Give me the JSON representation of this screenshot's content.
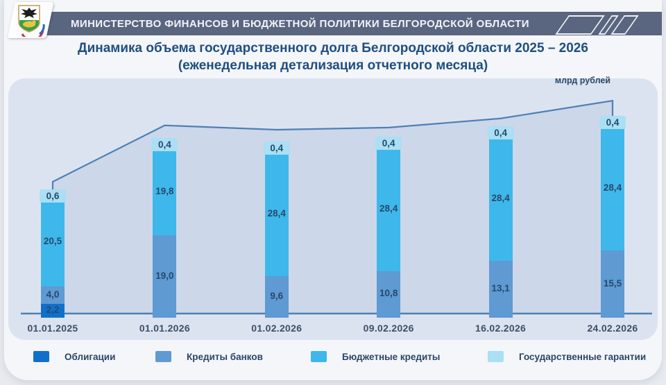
{
  "header": {
    "ministry": "МИНИСТЕРСТВО ФИНАНСОВ И БЮДЖЕТНОЙ ПОЛИТИКИ БЕЛГОРОДСКОЙ ОБЛАСТИ",
    "logo": "coat-of-arms-belgorod-region"
  },
  "title": {
    "line1": "Динамика объема государственного долга Белгородской области 2025 – 2026",
    "line2": "(еженедельная детализация отчетного месяца)"
  },
  "chart_data": {
    "type": "stacked-bar-with-area-trend",
    "title": "Динамика объема государственного долга Белгородской области 2025 – 2026",
    "unit_label": "млрд рублей",
    "categories": [
      "01.01.2025",
      "01.01.2026",
      "01.02.2026",
      "09.02.2026",
      "16.02.2026",
      "24.02.2026"
    ],
    "series": [
      {
        "name": "Облигации",
        "color": "#1070c9",
        "values": [
          2.2,
          0,
          0,
          0,
          0,
          0
        ]
      },
      {
        "name": "Кредиты банков",
        "color": "#5f9ad2",
        "values": [
          4.0,
          19.0,
          9.6,
          10.8,
          13.1,
          15.5
        ]
      },
      {
        "name": "Бюджетные кредиты",
        "color": "#3eb8ea",
        "values": [
          20.5,
          19.8,
          28.4,
          28.4,
          28.4,
          28.4
        ]
      },
      {
        "name": "Государственные гарантии",
        "color": "#aadff4",
        "values": [
          0.6,
          0.4,
          0.4,
          0.4,
          0.4,
          0.4
        ]
      }
    ],
    "totals": [
      27.3,
      39.2,
      38.4,
      39.6,
      41.9,
      44.3
    ],
    "trend_outline": {
      "description": "area outline drawn over the bars, starts at top of first bar, ends dropping onto top of last bar",
      "start_value": 27.3,
      "point_values": [
        30.4,
        43.4,
        42.4,
        42.9,
        45.0,
        49.1
      ],
      "end_value": 44.3,
      "line_color": "#4d80b4",
      "fill_color": "#cad5e9"
    },
    "ylim": [
      0,
      54
    ],
    "grid": false,
    "legend_position": "bottom",
    "decimal_separator": ","
  }
}
